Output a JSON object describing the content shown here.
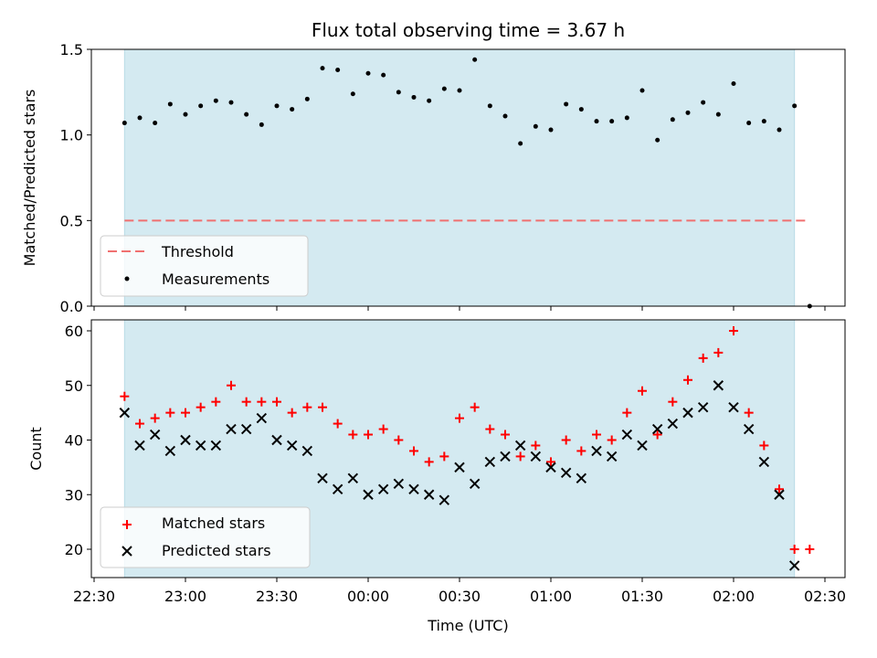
{
  "chart_data": [
    {
      "type": "scatter",
      "title": "Flux total observing time = 3.67 h",
      "xlabel": "",
      "ylabel": "Matched/Predicted stars",
      "ylim": [
        0,
        1.5
      ],
      "yticks": [
        "0.0",
        "0.5",
        "1.0",
        "1.5"
      ],
      "shaded_region": {
        "start": "22:40",
        "end": "02:20",
        "color": "#d4eaf1"
      },
      "threshold": {
        "name": "Threshold",
        "value": 0.5,
        "x_range": [
          "22:40",
          "02:25"
        ],
        "color": "#f08080"
      },
      "series": [
        {
          "name": "Measurements",
          "color": "#000000",
          "points": [
            [
              "22:40",
              1.07
            ],
            [
              "22:45",
              1.1
            ],
            [
              "22:50",
              1.07
            ],
            [
              "22:55",
              1.18
            ],
            [
              "23:00",
              1.12
            ],
            [
              "23:05",
              1.17
            ],
            [
              "23:10",
              1.2
            ],
            [
              "23:15",
              1.19
            ],
            [
              "23:20",
              1.12
            ],
            [
              "23:25",
              1.06
            ],
            [
              "23:30",
              1.17
            ],
            [
              "23:35",
              1.15
            ],
            [
              "23:40",
              1.21
            ],
            [
              "23:45",
              1.39
            ],
            [
              "23:50",
              1.38
            ],
            [
              "23:55",
              1.24
            ],
            [
              "00:00",
              1.36
            ],
            [
              "00:05",
              1.35
            ],
            [
              "00:10",
              1.25
            ],
            [
              "00:15",
              1.22
            ],
            [
              "00:20",
              1.2
            ],
            [
              "00:25",
              1.27
            ],
            [
              "00:30",
              1.26
            ],
            [
              "00:35",
              1.44
            ],
            [
              "00:40",
              1.17
            ],
            [
              "00:45",
              1.11
            ],
            [
              "00:50",
              0.95
            ],
            [
              "00:55",
              1.05
            ],
            [
              "01:00",
              1.03
            ],
            [
              "01:05",
              1.18
            ],
            [
              "01:10",
              1.15
            ],
            [
              "01:15",
              1.08
            ],
            [
              "01:20",
              1.08
            ],
            [
              "01:25",
              1.1
            ],
            [
              "01:30",
              1.26
            ],
            [
              "01:35",
              0.97
            ],
            [
              "01:40",
              1.09
            ],
            [
              "01:45",
              1.13
            ],
            [
              "01:50",
              1.19
            ],
            [
              "01:55",
              1.12
            ],
            [
              "02:00",
              1.3
            ],
            [
              "02:05",
              1.07
            ],
            [
              "02:10",
              1.08
            ],
            [
              "02:15",
              1.03
            ],
            [
              "02:20",
              1.17
            ],
            [
              "02:25",
              0.0
            ]
          ]
        }
      ],
      "legend": "lower-left"
    },
    {
      "type": "scatter",
      "title": "",
      "xlabel": "Time (UTC)",
      "ylabel": "Count",
      "ylim": [
        15,
        62
      ],
      "yticks": [
        "20",
        "30",
        "40",
        "50",
        "60"
      ],
      "xticks": [
        "22:30",
        "23:00",
        "23:30",
        "00:00",
        "00:30",
        "01:00",
        "01:30",
        "02:00",
        "02:30"
      ],
      "shaded_region": {
        "start": "22:40",
        "end": "02:20",
        "color": "#d4eaf1"
      },
      "series": [
        {
          "name": "Matched stars",
          "marker": "plus",
          "color": "#ff0000",
          "points": [
            [
              "22:40",
              48
            ],
            [
              "22:45",
              43
            ],
            [
              "22:50",
              44
            ],
            [
              "22:55",
              45
            ],
            [
              "23:00",
              45
            ],
            [
              "23:05",
              46
            ],
            [
              "23:10",
              47
            ],
            [
              "23:15",
              50
            ],
            [
              "23:20",
              47
            ],
            [
              "23:25",
              47
            ],
            [
              "23:30",
              47
            ],
            [
              "23:35",
              45
            ],
            [
              "23:40",
              46
            ],
            [
              "23:45",
              46
            ],
            [
              "23:50",
              43
            ],
            [
              "23:55",
              41
            ],
            [
              "00:00",
              41
            ],
            [
              "00:05",
              42
            ],
            [
              "00:10",
              40
            ],
            [
              "00:15",
              38
            ],
            [
              "00:20",
              36
            ],
            [
              "00:25",
              37
            ],
            [
              "00:30",
              44
            ],
            [
              "00:35",
              46
            ],
            [
              "00:40",
              42
            ],
            [
              "00:45",
              41
            ],
            [
              "00:50",
              37
            ],
            [
              "00:55",
              39
            ],
            [
              "01:00",
              36
            ],
            [
              "01:05",
              40
            ],
            [
              "01:10",
              38
            ],
            [
              "01:15",
              41
            ],
            [
              "01:20",
              40
            ],
            [
              "01:25",
              45
            ],
            [
              "01:30",
              49
            ],
            [
              "01:35",
              41
            ],
            [
              "01:40",
              47
            ],
            [
              "01:45",
              51
            ],
            [
              "01:50",
              55
            ],
            [
              "01:55",
              56
            ],
            [
              "02:00",
              60
            ],
            [
              "02:05",
              45
            ],
            [
              "02:10",
              39
            ],
            [
              "02:15",
              31
            ],
            [
              "02:20",
              20
            ],
            [
              "02:25",
              20
            ]
          ]
        },
        {
          "name": "Predicted stars",
          "marker": "x",
          "color": "#000000",
          "points": [
            [
              "22:40",
              45
            ],
            [
              "22:45",
              39
            ],
            [
              "22:50",
              41
            ],
            [
              "22:55",
              38
            ],
            [
              "23:00",
              40
            ],
            [
              "23:05",
              39
            ],
            [
              "23:10",
              39
            ],
            [
              "23:15",
              42
            ],
            [
              "23:20",
              42
            ],
            [
              "23:25",
              44
            ],
            [
              "23:30",
              40
            ],
            [
              "23:35",
              39
            ],
            [
              "23:40",
              38
            ],
            [
              "23:45",
              33
            ],
            [
              "23:50",
              31
            ],
            [
              "23:55",
              33
            ],
            [
              "00:00",
              30
            ],
            [
              "00:05",
              31
            ],
            [
              "00:10",
              32
            ],
            [
              "00:15",
              31
            ],
            [
              "00:20",
              30
            ],
            [
              "00:25",
              29
            ],
            [
              "00:30",
              35
            ],
            [
              "00:35",
              32
            ],
            [
              "00:40",
              36
            ],
            [
              "00:45",
              37
            ],
            [
              "00:50",
              39
            ],
            [
              "00:55",
              37
            ],
            [
              "01:00",
              35
            ],
            [
              "01:05",
              34
            ],
            [
              "01:10",
              33
            ],
            [
              "01:15",
              38
            ],
            [
              "01:20",
              37
            ],
            [
              "01:25",
              41
            ],
            [
              "01:30",
              39
            ],
            [
              "01:35",
              42
            ],
            [
              "01:40",
              43
            ],
            [
              "01:45",
              45
            ],
            [
              "01:50",
              46
            ],
            [
              "01:55",
              50
            ],
            [
              "02:00",
              46
            ],
            [
              "02:05",
              42
            ],
            [
              "02:10",
              36
            ],
            [
              "02:15",
              30
            ],
            [
              "02:20",
              17
            ]
          ]
        }
      ],
      "legend": "lower-left"
    }
  ]
}
